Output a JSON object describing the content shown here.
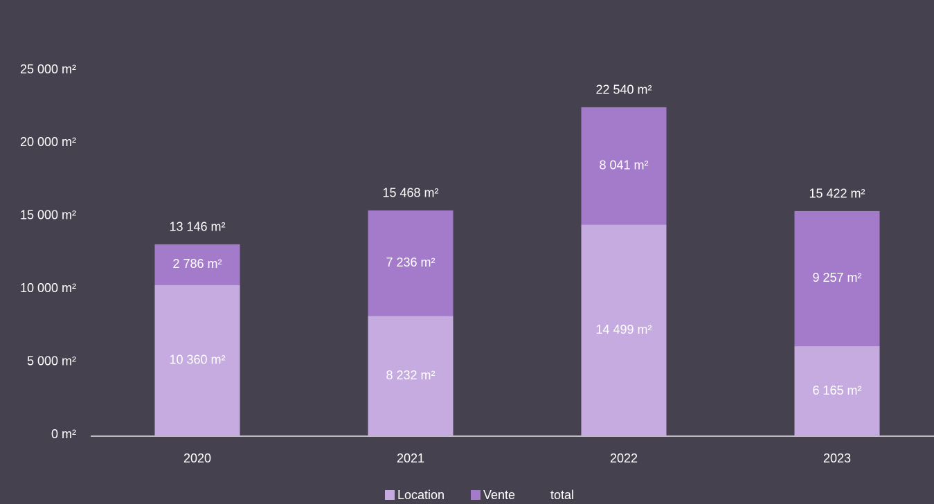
{
  "chart_data": {
    "type": "stacked_bar",
    "categories": [
      "2020",
      "2021",
      "2022",
      "2023"
    ],
    "series": [
      {
        "name": "Location",
        "color": "#c5abdf",
        "values": [
          10360,
          8232,
          14499,
          6165
        ],
        "value_labels": [
          "10 360 m²",
          "8 232 m²",
          "14 499 m²",
          "6 165 m²"
        ]
      },
      {
        "name": "Vente",
        "color": "#a47acb",
        "values": [
          2786,
          7236,
          8041,
          9257
        ],
        "value_labels": [
          "2 786 m²",
          "7 236 m²",
          "8 041 m²",
          "9 257 m²"
        ]
      },
      {
        "name": "total",
        "values": [
          13146,
          15468,
          22540,
          15422
        ],
        "value_labels": [
          "13 146 m²",
          "15 468 m²",
          "22 540 m²",
          "15 422 m²"
        ]
      }
    ],
    "ylim": [
      0,
      25000
    ],
    "yticks": [
      {
        "value": 0,
        "label": "0 m²"
      },
      {
        "value": 5000,
        "label": "5 000 m²"
      },
      {
        "value": 10000,
        "label": "10 000 m²"
      },
      {
        "value": 15000,
        "label": "15 000 m²"
      },
      {
        "value": 20000,
        "label": "20 000 m²"
      },
      {
        "value": 25000,
        "label": "25 000 m²"
      }
    ],
    "legend": "bottom"
  }
}
